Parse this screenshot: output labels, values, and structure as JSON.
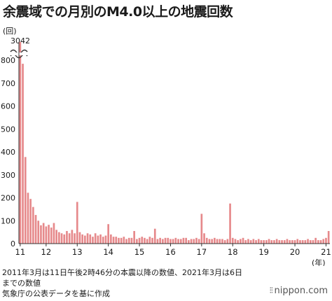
{
  "title": "余震域での月別のM4.0以上の地震回数",
  "y_unit": "(回)",
  "x_unit": "(年)",
  "first_bar_label": "3042",
  "notes": [
    "2011年3月は11日午後2時46分の本震以降の数値、2021年3月は6日",
    "までの数値",
    "気象庁の公表データを基に作成"
  ],
  "credit": "nippon.com",
  "colors": {
    "bar": "#e6898b",
    "bar_stroke": "#c96a6d",
    "axis": "#333333",
    "grid": "#dddddd"
  },
  "chart_data": {
    "type": "bar",
    "title": "余震域での月別のM4.0以上の地震回数",
    "ylabel": "(回)",
    "xlabel": "(年)",
    "ylim": [
      0,
      880
    ],
    "yticks": [
      0,
      100,
      200,
      300,
      400,
      500,
      600,
      700,
      800
    ],
    "axis_break": {
      "label": "3042",
      "note": "first bar exceeds axis; y-axis broken"
    },
    "x_ticks": [
      {
        "label": "11",
        "index": 0
      },
      {
        "label": "12",
        "index": 10
      },
      {
        "label": "13",
        "index": 22
      },
      {
        "label": "14",
        "index": 34
      },
      {
        "label": "15",
        "index": 46
      },
      {
        "label": "16",
        "index": 58
      },
      {
        "label": "17",
        "index": 70
      },
      {
        "label": "18",
        "index": 82
      },
      {
        "label": "19",
        "index": 94
      },
      {
        "label": "20",
        "index": 106
      },
      {
        "label": "21",
        "index": 118
      }
    ],
    "series": [
      {
        "values": [
          3042,
          785,
          378,
          222,
          195,
          160,
          125,
          100,
          80,
          90,
          75,
          82,
          70,
          90,
          60,
          50,
          45,
          40,
          55,
          45,
          60,
          45,
          182,
          50,
          40,
          35,
          45,
          40,
          30,
          45,
          35,
          40,
          30,
          35,
          85,
          40,
          30,
          30,
          25,
          25,
          30,
          20,
          25,
          25,
          55,
          20,
          25,
          30,
          25,
          20,
          30,
          25,
          65,
          20,
          25,
          20,
          25,
          25,
          20,
          20,
          25,
          20,
          20,
          25,
          25,
          15,
          20,
          20,
          25,
          20,
          130,
          45,
          25,
          20,
          20,
          25,
          20,
          20,
          20,
          15,
          20,
          175,
          25,
          20,
          15,
          20,
          25,
          15,
          20,
          15,
          20,
          15,
          20,
          15,
          15,
          15,
          20,
          15,
          15,
          20,
          15,
          15,
          15,
          20,
          15,
          15,
          15,
          20,
          15,
          15,
          15,
          20,
          15,
          15,
          25,
          15,
          15,
          20,
          25,
          55
        ]
      }
    ]
  }
}
